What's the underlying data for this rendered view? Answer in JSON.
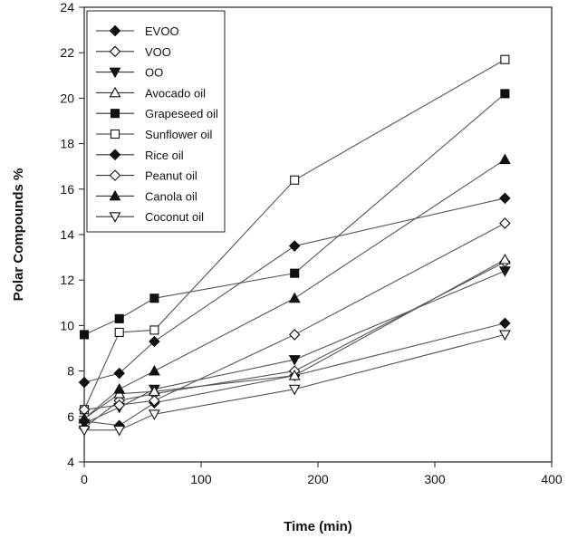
{
  "chart_data": {
    "type": "line",
    "title": "",
    "xlabel": "Time (min)",
    "ylabel": "Polar Compounds %",
    "xlim": [
      0,
      400
    ],
    "ylim": [
      4,
      24
    ],
    "xticks": [
      0,
      100,
      200,
      300,
      400
    ],
    "yticks": [
      4,
      6,
      8,
      10,
      12,
      14,
      16,
      18,
      20,
      22,
      24
    ],
    "grid": false,
    "legend_position": "top-left",
    "x": [
      0,
      30,
      60,
      180,
      360
    ],
    "series": [
      {
        "name": "EVOO",
        "marker": "diamond-filled",
        "values": [
          5.8,
          5.6,
          6.6,
          7.8,
          10.1
        ]
      },
      {
        "name": "VOO",
        "marker": "diamond-open",
        "values": [
          5.5,
          6.7,
          7.0,
          8.0,
          12.8
        ]
      },
      {
        "name": "OO",
        "marker": "triangle-down-filled",
        "values": [
          5.7,
          6.4,
          7.2,
          8.5,
          12.4
        ]
      },
      {
        "name": "Avocado oil",
        "marker": "triangle-up-open",
        "values": [
          5.9,
          7.0,
          7.1,
          7.8,
          12.9
        ]
      },
      {
        "name": "Grapeseed oil",
        "marker": "square-filled",
        "values": [
          9.6,
          10.3,
          11.2,
          12.3,
          20.2
        ]
      },
      {
        "name": "Sunflower oil",
        "marker": "square-open",
        "values": [
          6.3,
          9.7,
          9.8,
          16.4,
          21.7
        ]
      },
      {
        "name": "Rice oil",
        "marker": "diamond-filled",
        "values": [
          7.5,
          7.9,
          9.3,
          13.5,
          15.6
        ]
      },
      {
        "name": "Peanut oil",
        "marker": "diamond-open",
        "values": [
          6.3,
          6.5,
          6.7,
          9.6,
          14.5
        ]
      },
      {
        "name": "Canola oil",
        "marker": "triangle-up-filled",
        "values": [
          5.9,
          7.2,
          8.0,
          11.2,
          17.3
        ]
      },
      {
        "name": "Coconut oil",
        "marker": "triangle-down-open",
        "values": [
          5.4,
          5.4,
          6.1,
          7.2,
          9.6
        ]
      }
    ]
  }
}
